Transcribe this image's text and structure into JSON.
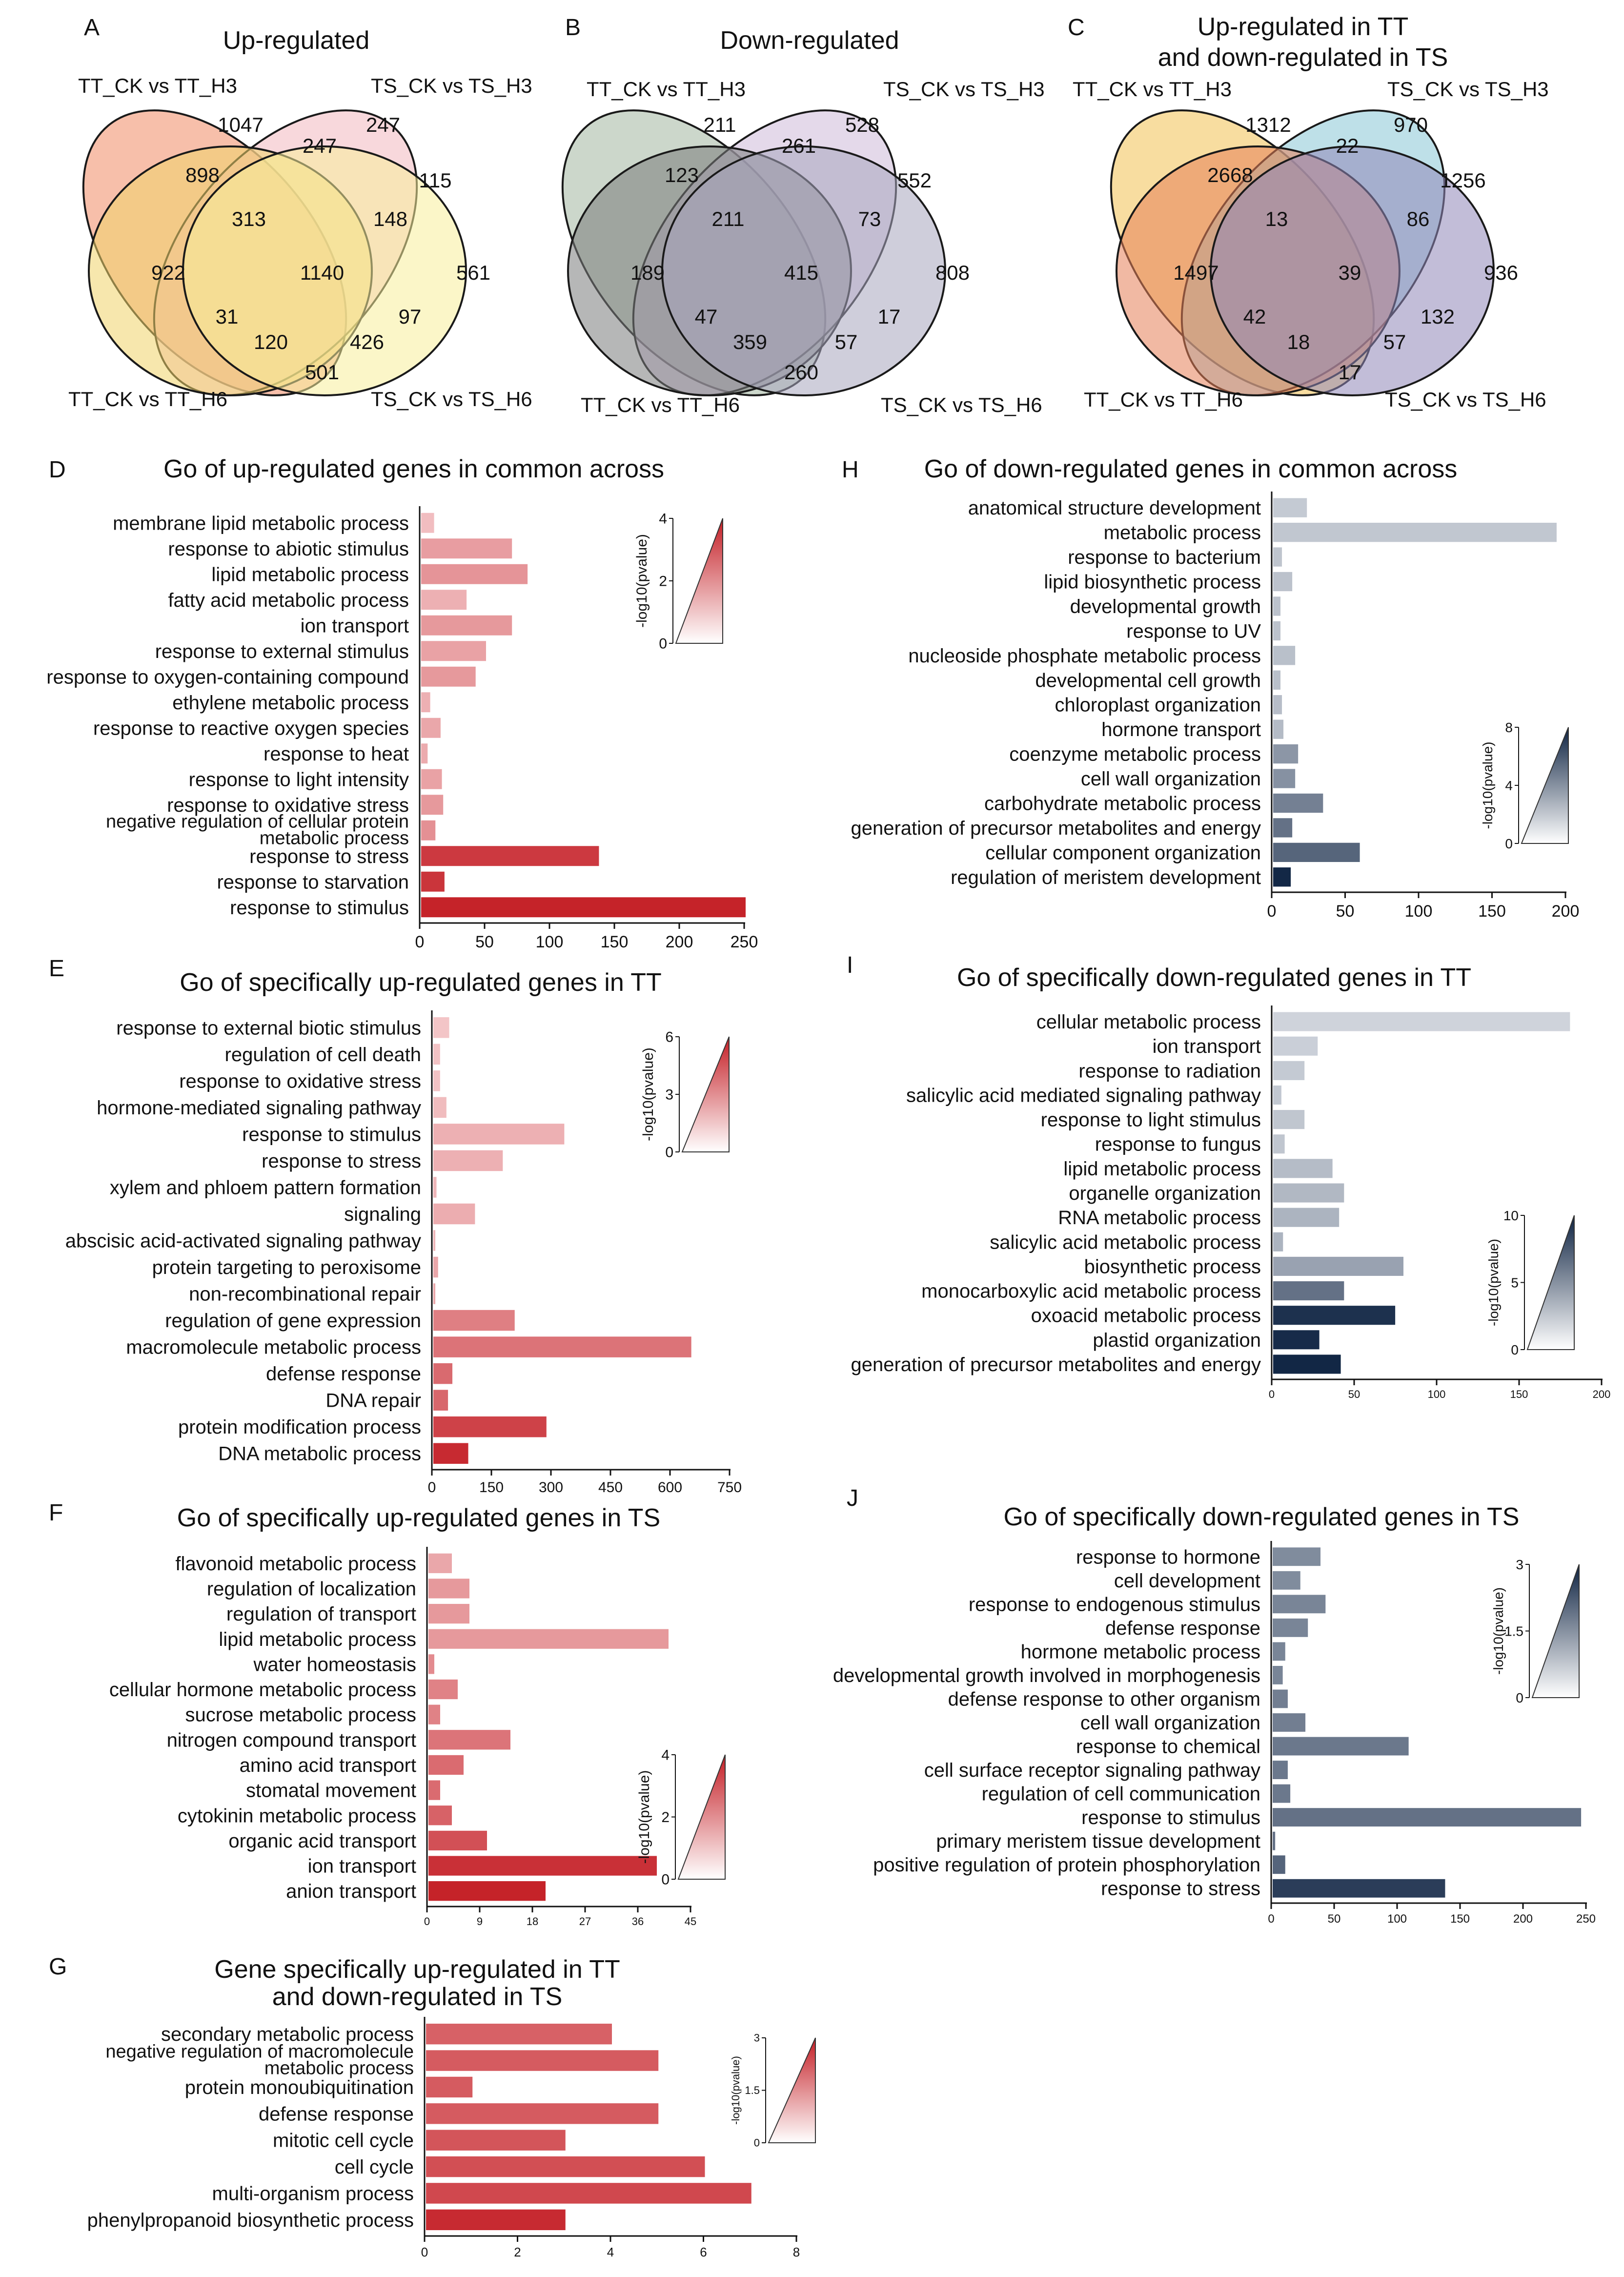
{
  "colors": {
    "red_low": "#f7d4d6",
    "red_high": "#c41e25",
    "blue_low": "#e4e7ec",
    "blue_high": "#0e2342",
    "venn_a": [
      "#f08a64",
      "#f3b8c0",
      "#f1d36a",
      "#f8ee9a"
    ],
    "venn_b": [
      "#a3b6a0",
      "#cdb9d8",
      "#7a7c7c",
      "#a8a6bd"
    ],
    "venn_c": [
      "#f2c152",
      "#88c6d6",
      "#e58058",
      "#8f86b8"
    ]
  },
  "venns": [
    {
      "letter": "A",
      "title": [
        "Up-regulated"
      ],
      "set_labels": [
        "TT_CK vs TT_H3",
        "TS_CK vs TS_H3",
        "TT_CK vs TT_H6",
        "TS_CK vs TS_H6"
      ],
      "counts": [
        "1047",
        "247",
        "247",
        "898",
        "313",
        "148",
        "115",
        "922",
        "1140",
        "561",
        "31",
        "97",
        "120",
        "426",
        "501"
      ]
    },
    {
      "letter": "B",
      "title": [
        "Down-regulated"
      ],
      "set_labels": [
        "TT_CK vs TT_H3",
        "TS_CK vs TS_H3",
        "TT_CK vs TT_H6",
        "TS_CK vs TS_H6"
      ],
      "counts": [
        "211",
        "261",
        "528",
        "123",
        "211",
        "73",
        "552",
        "189",
        "415",
        "808",
        "47",
        "17",
        "359",
        "57",
        "260"
      ]
    },
    {
      "letter": "C",
      "title": [
        "Up-regulated in TT",
        "and down-regulated in TS"
      ],
      "set_labels": [
        "TT_CK vs TT_H3",
        "TS_CK vs TS_H3",
        "TT_CK vs TT_H6",
        "TS_CK vs TS_H6"
      ],
      "counts": [
        "1312",
        "22",
        "970",
        "2668",
        "13",
        "86",
        "1256",
        "1497",
        "39",
        "936",
        "42",
        "132",
        "18",
        "57",
        "17"
      ]
    }
  ],
  "chart_data": [
    {
      "id": "D",
      "type": "bar",
      "orientation": "horizontal",
      "title": "Go of up-regulated genes in common across",
      "categories": [
        "membrane lipid metabolic process",
        "response to abiotic stimulus",
        "lipid metabolic process",
        "fatty acid metabolic process",
        "ion transport",
        "response to external stimulus",
        "response to oxygen-containing compound",
        "ethylene metabolic process",
        "response to reactive oxygen species",
        "response to heat",
        "response to light intensity",
        "response to oxidative stress",
        "negative regulation of cellular protein metabolic process",
        "response to stress",
        "response to starvation",
        "response to stimulus"
      ],
      "values": [
        10,
        70,
        82,
        35,
        70,
        50,
        42,
        7,
        15,
        5,
        16,
        17,
        11,
        137,
        18,
        250
      ],
      "color_values": [
        0.5,
        1.2,
        1.4,
        0.8,
        1.3,
        1.1,
        1.3,
        0.8,
        1.0,
        0.9,
        1.1,
        1.3,
        1.5,
        3.4,
        3.5,
        3.9
      ],
      "xlim": [
        0,
        250
      ],
      "xticks": [
        "0",
        "50",
        "100",
        "150",
        "200",
        "250"
      ],
      "legend": {
        "label": "-log10(pvalue)",
        "ticks": [
          "4",
          "2",
          "0"
        ],
        "max": 4
      },
      "palette": "red"
    },
    {
      "id": "E",
      "type": "bar",
      "orientation": "horizontal",
      "title": "Go of specifically up-regulated genes in TT",
      "categories": [
        "response to external biotic stimulus",
        "regulation of cell death",
        "response to oxidative stress",
        "hormone-mediated signaling pathway",
        "response to stimulus",
        "response to stress",
        "xylem and phloem pattern formation",
        "signaling",
        "abscisic acid-activated signaling pathway",
        "protein targeting to peroxisome",
        "non-recombinational repair",
        "regulation of gene expression",
        "macromolecule metabolic process",
        "defense response",
        "DNA repair",
        "protein modification process",
        "DNA metabolic process"
      ],
      "values": [
        40,
        17,
        17,
        33,
        330,
        175,
        8,
        105,
        5,
        12,
        5,
        205,
        650,
        48,
        37,
        285,
        88
      ],
      "color_values": [
        0.5,
        0.6,
        0.6,
        0.8,
        1.2,
        1.2,
        1.0,
        1.3,
        1.0,
        1.5,
        1.5,
        2.8,
        3.2,
        3.5,
        3.6,
        4.8,
        5.6
      ],
      "xlim": [
        0,
        750
      ],
      "xticks": [
        "0",
        "150",
        "300",
        "450",
        "600",
        "750"
      ],
      "legend": {
        "label": "-log10(pvalue)",
        "ticks": [
          "6",
          "3",
          "0"
        ],
        "max": 6
      },
      "palette": "red"
    },
    {
      "id": "F",
      "type": "bar",
      "orientation": "horizontal",
      "title": "Go of specifically up-regulated genes in TS",
      "categories": [
        "flavonoid metabolic process",
        "regulation of localization",
        "regulation of transport",
        "lipid metabolic process",
        "water homeostasis",
        "cellular hormone metabolic process",
        "sucrose metabolic process",
        "nitrogen compound transport",
        "amino acid transport",
        "stomatal movement",
        "cytokinin metabolic process",
        "organic acid transport",
        "ion transport",
        "anion transport"
      ],
      "values": [
        4,
        7,
        7,
        41,
        1,
        5,
        2,
        14,
        6,
        2,
        4,
        10,
        39,
        20
      ],
      "color_values": [
        1.0,
        1.3,
        1.3,
        1.3,
        1.6,
        1.8,
        1.8,
        2.1,
        2.3,
        2.3,
        2.5,
        2.9,
        3.6,
        3.9
      ],
      "xlim": [
        0,
        45
      ],
      "xticks": [
        "0",
        "9",
        "18",
        "27",
        "36",
        "45"
      ],
      "legend": {
        "label": "-log10(pvalue)",
        "ticks": [
          "4",
          "2",
          "0"
        ],
        "max": 4
      },
      "palette": "red"
    },
    {
      "id": "G",
      "type": "bar",
      "orientation": "horizontal",
      "title": "Gene specifically up-regulated in TT and down-regulated in TS",
      "categories": [
        "secondary metabolic process",
        "negative regulation of macromolecule metabolic process",
        "protein monoubiquitination",
        "defense response",
        "mitotic cell cycle",
        "cell cycle",
        "multi-organism process",
        "phenylpropanoid biosynthetic process"
      ],
      "values": [
        4,
        5,
        1,
        5,
        3,
        6,
        7,
        3
      ],
      "color_values": [
        1.9,
        2.0,
        2.0,
        2.0,
        2.1,
        2.2,
        2.3,
        2.8
      ],
      "xlim": [
        0,
        8
      ],
      "xticks": [
        "0",
        "2",
        "4",
        "6",
        "8"
      ],
      "legend": {
        "label": "-log10(pvalue)",
        "ticks": [
          "3",
          "1.5",
          "0"
        ],
        "max": 3
      },
      "palette": "red"
    },
    {
      "id": "H",
      "type": "bar",
      "orientation": "horizontal",
      "title": "Go of down-regulated genes in common across",
      "categories": [
        "anatomical structure development",
        "metabolic process",
        "response to bacterium",
        "lipid biosynthetic process",
        "developmental growth",
        "response to UV",
        "nucleoside phosphate metabolic process",
        "developmental cell growth",
        "chloroplast organization",
        "hormone transport",
        "coenzyme metabolic process",
        "cell wall organization",
        "carbohydrate metabolic process",
        "generation of precursor metabolites and energy",
        "cellular component organization",
        "regulation of meristem development"
      ],
      "values": [
        23,
        193,
        6,
        13,
        5,
        5,
        15,
        5,
        6,
        7,
        17,
        15,
        34,
        13,
        59,
        12
      ],
      "color_values": [
        1.2,
        1.3,
        1.4,
        1.5,
        1.5,
        1.5,
        1.6,
        1.6,
        1.7,
        1.8,
        3.3,
        3.5,
        4.2,
        4.8,
        5.3,
        7.8
      ],
      "xlim": [
        0,
        200
      ],
      "xticks": [
        "0",
        "50",
        "100",
        "150",
        "200"
      ],
      "legend": {
        "label": "-log10(pvalue)",
        "ticks": [
          "8",
          "4",
          "0"
        ],
        "max": 8
      },
      "palette": "blue"
    },
    {
      "id": "I",
      "type": "bar",
      "orientation": "horizontal",
      "title": "Go of specifically down-regulated genes in TT",
      "categories": [
        "cellular metabolic process",
        "ion transport",
        "response to radiation",
        "salicylic acid mediated signaling pathway",
        "response to light stimulus",
        "response to fungus",
        "lipid metabolic process",
        "organelle organization",
        "RNA metabolic process",
        "salicylic acid metabolic process",
        "biosynthetic process",
        "monocarboxylic acid metabolic process",
        "oxoacid metabolic process",
        "plastid organization",
        "generation of precursor metabolites and energy"
      ],
      "values": [
        180,
        27,
        19,
        5,
        19,
        7,
        36,
        43,
        40,
        6,
        79,
        43,
        74,
        28,
        41
      ],
      "color_values": [
        1.0,
        1.2,
        1.5,
        1.6,
        1.7,
        1.7,
        2.2,
        2.4,
        2.6,
        2.6,
        3.5,
        6.0,
        9.3,
        9.6,
        9.8
      ],
      "xlim": [
        0,
        200
      ],
      "xticks": [
        "0",
        "50",
        "100",
        "150",
        "200"
      ],
      "legend": {
        "label": "-log10(pvalue)",
        "ticks": [
          "10",
          "5",
          "0"
        ],
        "max": 10
      },
      "palette": "blue"
    },
    {
      "id": "J",
      "type": "bar",
      "orientation": "horizontal",
      "title": "Go of specifically down-regulated genes in TS",
      "categories": [
        "response to hormone",
        "cell development",
        "response to endogenous stimulus",
        "defense response",
        "hormone metabolic process",
        "developmental growth involved in morphogenesis",
        "defense response to other organism",
        "cell wall organization",
        "response to chemical",
        "cell surface receptor signaling pathway",
        "regulation of cell communication",
        "response to stimulus",
        "primary meristem tissue development",
        "positive regulation of protein phosphorylation",
        "response to stress"
      ],
      "values": [
        38,
        22,
        42,
        28,
        10,
        8,
        12,
        26,
        108,
        12,
        14,
        245,
        2,
        10,
        137
      ],
      "color_values": [
        1.4,
        1.4,
        1.5,
        1.5,
        1.5,
        1.5,
        1.6,
        1.6,
        1.7,
        1.7,
        1.7,
        1.8,
        1.8,
        2.0,
        2.6
      ],
      "xlim": [
        0,
        250
      ],
      "xticks": [
        "0",
        "50",
        "100",
        "150",
        "200",
        "250"
      ],
      "legend": {
        "label": "-log10(pvalue)",
        "ticks": [
          "3",
          "1.5",
          "0"
        ],
        "max": 3
      },
      "palette": "blue"
    }
  ]
}
